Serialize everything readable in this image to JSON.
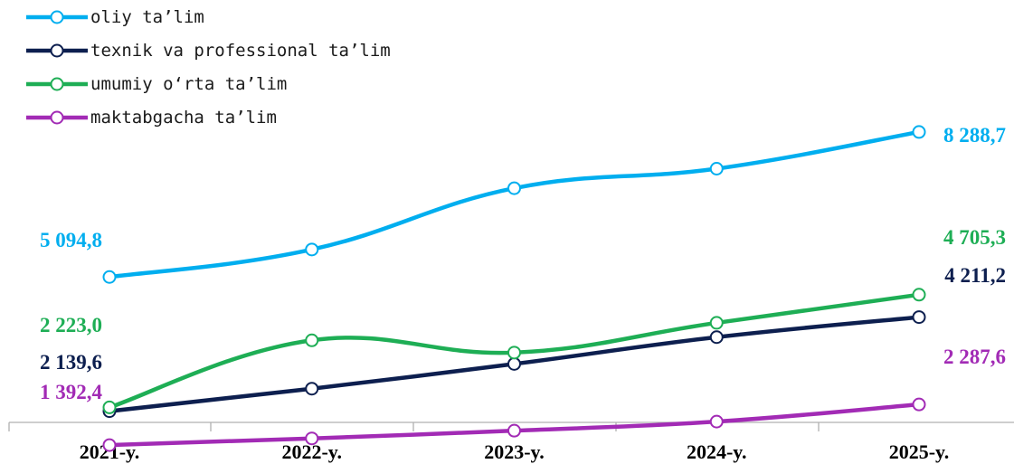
{
  "chart_data": {
    "type": "line",
    "categories": [
      "2021-y.",
      "2022-y.",
      "2023-y.",
      "2024-y.",
      "2025-y."
    ],
    "series": [
      {
        "name": "oliy ta’lim",
        "color": "#00aeef",
        "values": [
          5094.8,
          5700,
          7050,
          7480,
          8288.7
        ],
        "labels": {
          "first": "5 094,8",
          "last": "8 288,7"
        }
      },
      {
        "name": "texnik va professional ta’lim",
        "color": "#0d1f4f",
        "values": [
          2139.6,
          2635,
          3180,
          3770,
          4211.2
        ],
        "labels": {
          "first": "2 139,6",
          "last": "4 211,2"
        }
      },
      {
        "name": "umumiy o‘rta ta’lim",
        "color": "#1eae55",
        "values": [
          2223.0,
          3700,
          3430,
          4085,
          4705.3
        ],
        "labels": {
          "first": "2 223,0",
          "last": "4 705,3"
        }
      },
      {
        "name": "maktabgacha ta’lim",
        "color": "#a22bb5",
        "values": [
          1392.4,
          1540,
          1710,
          1910,
          2287.6
        ],
        "labels": {
          "first": "1 392,4",
          "last": "2 287,6"
        }
      }
    ],
    "legend_position": "top-left",
    "grid": false,
    "ylim": [
      0,
      11000
    ]
  }
}
